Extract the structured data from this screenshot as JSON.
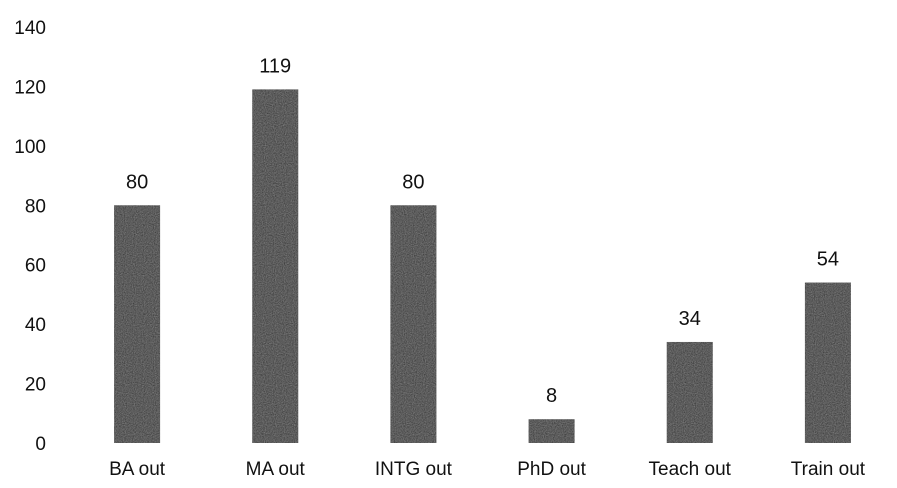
{
  "chart_data": {
    "type": "bar",
    "title": "",
    "xlabel": "",
    "ylabel": "",
    "categories": [
      "BA out",
      "MA out",
      "INTG out",
      "PhD out",
      "Teach out",
      "Train out"
    ],
    "values": [
      80,
      119,
      80,
      8,
      34,
      54
    ],
    "ylim": [
      0,
      140
    ],
    "yticks": [
      0,
      20,
      40,
      60,
      80,
      100,
      120,
      140
    ],
    "grid": false,
    "legend": "none",
    "data_labels": true,
    "bar_color": "#2b2b2b"
  }
}
